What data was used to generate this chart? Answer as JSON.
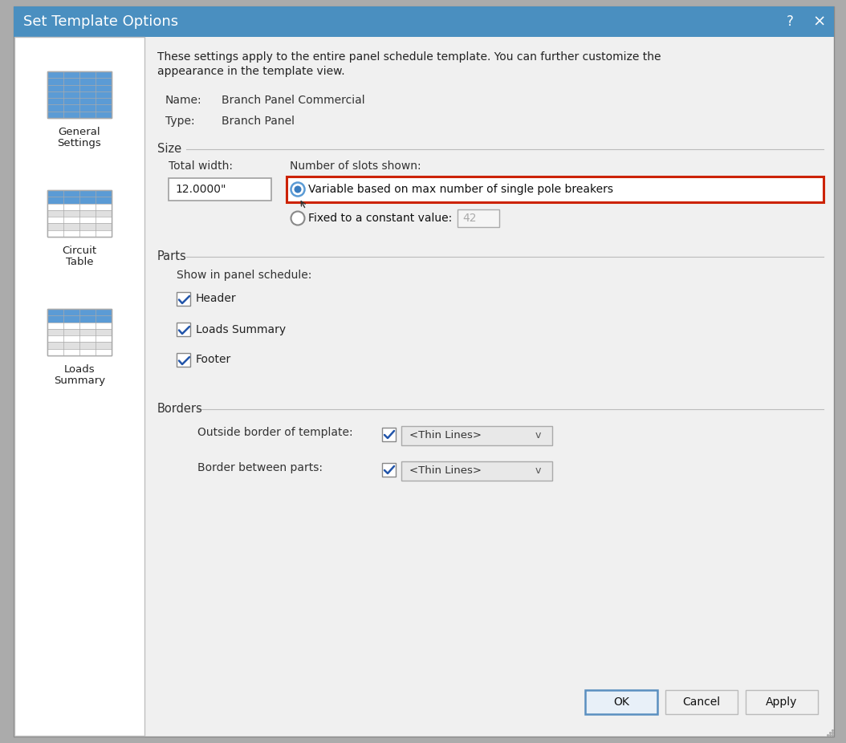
{
  "title": "Set Template Options",
  "title_bar_color": "#4a8fc0",
  "title_text_color": "#ffffff",
  "dialog_bg": "#f0f0f0",
  "sidebar_bg": "#ffffff",
  "sidebar_border": "#c0c0c0",
  "outer_bg": "#ababab",
  "intro_text_line1": "These settings apply to the entire panel schedule template. You can further customize the",
  "intro_text_line2": "appearance in the template view.",
  "name_label": "Name:",
  "name_value": "Branch Panel Commercial",
  "type_label": "Type:",
  "type_value": "Branch Panel",
  "size_label": "Size",
  "total_width_label": "Total width:",
  "total_width_value": "12.0000\"",
  "slots_label": "Number of slots shown:",
  "radio1_label": "Variable based on max number of single pole breakers",
  "radio1_selected": true,
  "radio2_label": "Fixed to a constant value:",
  "radio2_value": "42",
  "radio2_selected": false,
  "highlight_color": "#cc2200",
  "parts_label": "Parts",
  "show_label": "Show in panel schedule:",
  "checkboxes": [
    "Header",
    "Loads Summary",
    "Footer"
  ],
  "borders_label": "Borders",
  "outside_border_label": "Outside border of template:",
  "outside_border_value": "<Thin Lines>",
  "between_parts_label": "Border between parts:",
  "between_parts_value": "<Thin Lines>",
  "sidebar_labels": [
    "General\nSettings",
    "Circuit\nTable",
    "Loads\nSummary"
  ],
  "btn_ok": "OK",
  "btn_cancel": "Cancel",
  "btn_apply": "Apply",
  "btn_bg": "#f0f0f0",
  "ok_border": "#5a8fc0",
  "ok_bg": "#e8f0f8",
  "icon0_full_blue": true,
  "icon1_full_blue": false,
  "icon2_full_blue": false
}
